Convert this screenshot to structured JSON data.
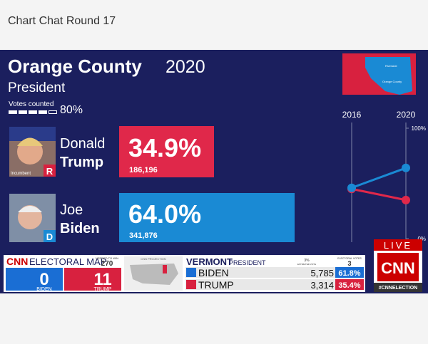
{
  "header": {
    "title": "Chart Chat Round 17"
  },
  "graphic": {
    "county_title": "Orange County",
    "year": "2020",
    "race": "President",
    "votes_counted_label": "Votes counted",
    "votes_counted": "80%",
    "map_labels": [
      "Riverside",
      "Orange County"
    ],
    "candidates": [
      {
        "first": "Donald",
        "last": "Trump",
        "party": "R",
        "badge": "Incumbent",
        "percent": "34.9%",
        "votes": "186,196"
      },
      {
        "first": "Joe",
        "last": "Biden",
        "party": "D",
        "percent": "64.0%",
        "votes": "341,876"
      }
    ],
    "trend": {
      "type": "line",
      "x": [
        "2016",
        "2020"
      ],
      "ylim": [
        0,
        100
      ],
      "yticks": [
        {
          "value": 100,
          "label": "100%"
        },
        {
          "value": 0,
          "label": "0%"
        }
      ],
      "series": [
        {
          "color": "#e0284a",
          "values": [
            45,
            34.9
          ]
        },
        {
          "color": "#1a8ad4",
          "values": [
            46,
            64.0
          ]
        }
      ]
    }
  },
  "ticker": {
    "brand": "CNN",
    "title": "ELECTORAL MAP",
    "needed_label": "NEEDED TO WIN",
    "needed": "270",
    "biden_name": "BIDEN",
    "biden_ev": "0",
    "trump_name": "TRUMP",
    "trump_ev": "11",
    "projection": "CNN PROJECTION",
    "state": "VERMONT",
    "race": "PRESIDENT",
    "expected": "3%",
    "expected_label": "ESTIMATED VOTE",
    "ev_label": "ELECTORAL VOTES",
    "ev": "3",
    "rows": [
      [
        "BIDEN",
        "5,785",
        "61.8%"
      ],
      [
        "TRUMP",
        "3,314",
        "35.4%"
      ]
    ],
    "live": "LIVE",
    "hashtag": "#CNNELECTION"
  }
}
